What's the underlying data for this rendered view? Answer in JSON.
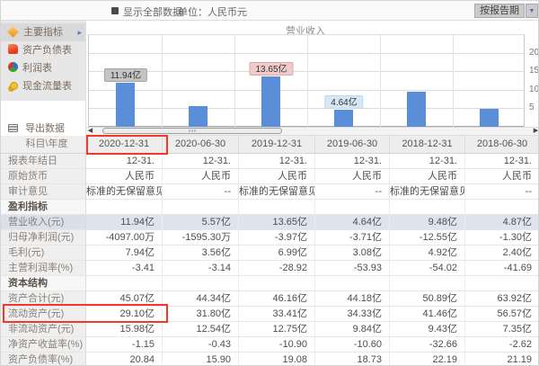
{
  "topbar": {
    "show_all_label": "显示全部数据",
    "unit_label": "单位：人民币元",
    "period_selector": "按报告期"
  },
  "sidebar": {
    "menu": [
      {
        "id": "main-indicators",
        "label": "主要指标",
        "icon": "diamond-icon",
        "selected": true
      },
      {
        "id": "balance-sheet",
        "label": "资产负债表",
        "icon": "document-icon",
        "selected": false
      },
      {
        "id": "income-statement",
        "label": "利润表",
        "icon": "sphere-icon",
        "selected": false
      },
      {
        "id": "cash-flow",
        "label": "现金流量表",
        "icon": "coins-icon",
        "selected": false
      }
    ],
    "export_label": "导出数据"
  },
  "chart_data": {
    "type": "bar",
    "title": "营业收入",
    "categories": [
      "2020-12-31",
      "2020-06-30",
      "2019-12-31",
      "2019-06-30",
      "2018-12-31",
      "2018-06-30"
    ],
    "values": [
      11.94,
      5.57,
      13.65,
      4.64,
      9.48,
      4.87
    ],
    "unit": "亿",
    "xlabel": "",
    "ylabel": "",
    "ylim": [
      0,
      25
    ],
    "yticks": [
      5,
      10,
      15,
      20
    ],
    "grid": true,
    "bar_color": "#5b8ed8",
    "callouts": [
      {
        "index": 0,
        "label": "11.94亿",
        "style": "gray"
      },
      {
        "index": 2,
        "label": "13.65亿",
        "style": "pink"
      },
      {
        "index": 3,
        "label": "4.64亿",
        "style": "blue"
      }
    ]
  },
  "table": {
    "corner_label": "科目\\年度",
    "columns": [
      "2020-12-31",
      "2020-06-30",
      "2019-12-31",
      "2019-06-30",
      "2018-12-31",
      "2018-06-30"
    ],
    "rows": [
      {
        "label": "报表年结日",
        "type": "data",
        "values": [
          "12-31.",
          "12-31.",
          "12-31.",
          "12-31.",
          "12-31.",
          "12-31."
        ]
      },
      {
        "label": "原始货币",
        "type": "data",
        "values": [
          "人民币",
          "人民币",
          "人民币",
          "人民币",
          "人民币",
          "人民币"
        ]
      },
      {
        "label": "审计意见",
        "type": "data",
        "values": [
          "标准的无保留意见",
          "--",
          "标准的无保留意见",
          "--",
          "标准的无保留意见",
          "--"
        ]
      },
      {
        "label": "盈利指标",
        "type": "section",
        "values": [
          "",
          "",
          "",
          "",
          "",
          ""
        ]
      },
      {
        "label": "营业收入(元)",
        "type": "data",
        "highlighted": true,
        "values": [
          "11.94亿",
          "5.57亿",
          "13.65亿",
          "4.64亿",
          "9.48亿",
          "4.87亿"
        ]
      },
      {
        "label": "归母净利润(元)",
        "type": "data",
        "values": [
          "-4097.00万",
          "-1595.30万",
          "-3.97亿",
          "-3.71亿",
          "-12.55亿",
          "-1.30亿"
        ]
      },
      {
        "label": "毛利(元)",
        "type": "data",
        "values": [
          "7.94亿",
          "3.56亿",
          "6.99亿",
          "3.08亿",
          "4.92亿",
          "2.40亿"
        ]
      },
      {
        "label": "主营利润率(%)",
        "type": "data",
        "values": [
          "-3.41",
          "-3.14",
          "-28.92",
          "-53.93",
          "-54.02",
          "-41.69"
        ]
      },
      {
        "label": "资本结构",
        "type": "section",
        "values": [
          "",
          "",
          "",
          "",
          "",
          ""
        ]
      },
      {
        "label": "资产合计(元)",
        "type": "data",
        "values": [
          "45.07亿",
          "44.34亿",
          "46.16亿",
          "44.18亿",
          "50.89亿",
          "63.92亿"
        ]
      },
      {
        "label": "流动资产(元)",
        "type": "data",
        "values": [
          "29.10亿",
          "31.80亿",
          "33.41亿",
          "34.33亿",
          "41.46亿",
          "56.57亿"
        ]
      },
      {
        "label": "非流动资产(元)",
        "type": "data",
        "values": [
          "15.98亿",
          "12.54亿",
          "12.75亿",
          "9.84亿",
          "9.43亿",
          "7.35亿"
        ]
      },
      {
        "label": "净资产收益率(%)",
        "type": "data",
        "values": [
          "-1.15",
          "-0.43",
          "-10.90",
          "-10.60",
          "-32.66",
          "-2.62"
        ]
      },
      {
        "label": "资产负债率(%)",
        "type": "data",
        "values": [
          "20.84",
          "15.90",
          "19.08",
          "18.73",
          "22.19",
          "21.19"
        ]
      }
    ]
  },
  "annotations": {
    "color": "#f1382a",
    "boxes": [
      {
        "target": "column-header-2020-12-31"
      },
      {
        "target": "row-current-assets-first-cell"
      }
    ]
  }
}
